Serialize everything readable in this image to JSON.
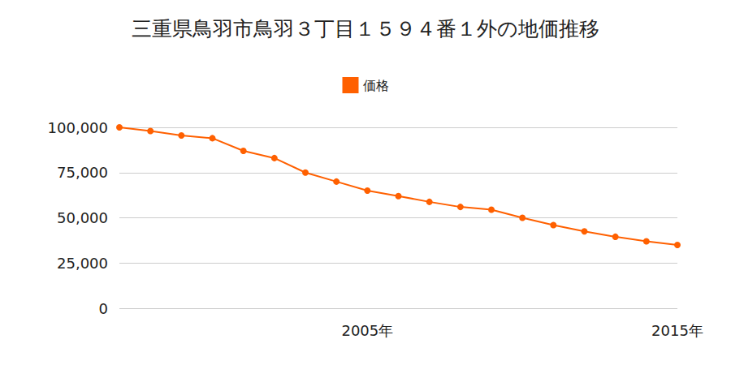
{
  "chart_data": {
    "type": "line",
    "title": "三重県鳥羽市鳥羽３丁目１５９４番１外の地価推移",
    "categories": [
      null,
      null,
      null,
      null,
      null,
      null,
      null,
      null,
      "2005年",
      null,
      null,
      null,
      null,
      null,
      null,
      null,
      null,
      null,
      "2015年"
    ],
    "series": [
      {
        "name": "価格",
        "color": "#ff6000",
        "marker": "circle",
        "values": [
          100000,
          98000,
          95500,
          94000,
          87000,
          83000,
          75000,
          70000,
          65000,
          62000,
          58800,
          56000,
          54500,
          50000,
          46000,
          42500,
          39500,
          37000,
          35000
        ]
      }
    ],
    "ylim": [
      0,
      100000
    ],
    "yticks": [
      {
        "value": 0,
        "label": "0"
      },
      {
        "value": 25000,
        "label": "25,000"
      },
      {
        "value": 50000,
        "label": "50,000"
      },
      {
        "value": 75000,
        "label": "75,000"
      },
      {
        "value": 100000,
        "label": "100,000"
      }
    ],
    "grid": true,
    "legend": "top"
  }
}
